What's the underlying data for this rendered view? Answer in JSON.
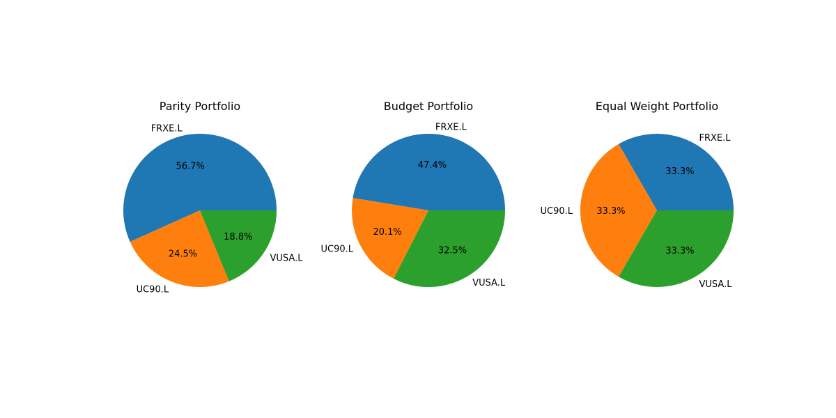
{
  "chart_data": [
    {
      "type": "pie",
      "title": "Parity Portfolio",
      "categories": [
        "FRXE.L",
        "UC90.L",
        "VUSA.L"
      ],
      "values": [
        56.7,
        24.5,
        18.8
      ],
      "percent_labels": [
        "56.7%",
        "24.5%",
        "18.8%"
      ],
      "colors": [
        "#1f77b4",
        "#ff7f0e",
        "#2ca02c"
      ],
      "start_angle_deg": 0,
      "direction": "counterclockwise"
    },
    {
      "type": "pie",
      "title": "Budget Portfolio",
      "categories": [
        "FRXE.L",
        "UC90.L",
        "VUSA.L"
      ],
      "values": [
        47.4,
        20.1,
        32.5
      ],
      "percent_labels": [
        "47.4%",
        "20.1%",
        "32.5%"
      ],
      "colors": [
        "#1f77b4",
        "#ff7f0e",
        "#2ca02c"
      ],
      "start_angle_deg": 0,
      "direction": "counterclockwise"
    },
    {
      "type": "pie",
      "title": "Equal Weight Portfolio",
      "categories": [
        "FRXE.L",
        "UC90.L",
        "VUSA.L"
      ],
      "values": [
        33.3,
        33.3,
        33.3
      ],
      "percent_labels": [
        "33.3%",
        "33.3%",
        "33.3%"
      ],
      "colors": [
        "#1f77b4",
        "#ff7f0e",
        "#2ca02c"
      ],
      "start_angle_deg": 0,
      "direction": "counterclockwise"
    }
  ]
}
